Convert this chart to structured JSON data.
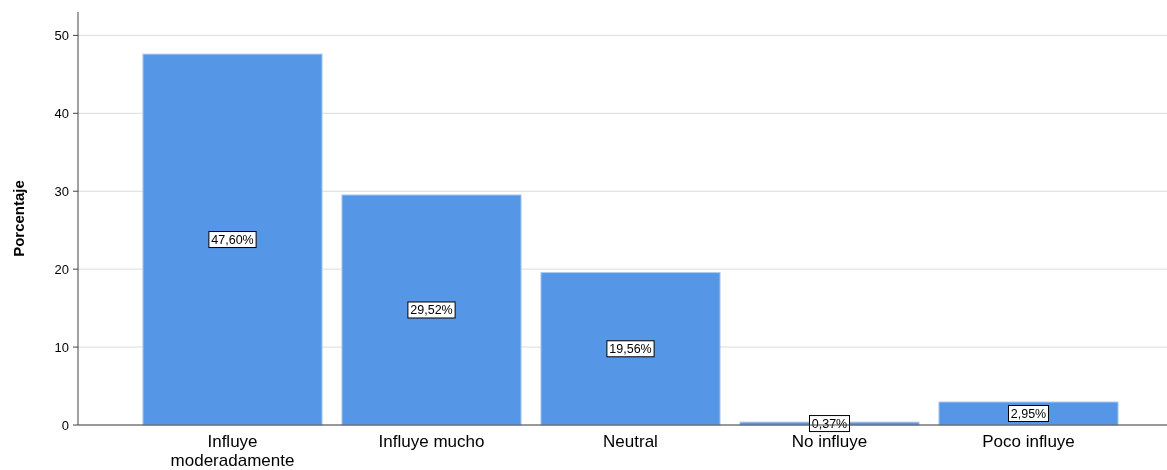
{
  "chart_data": {
    "type": "bar",
    "ylabel": "Porcentaje",
    "categories": [
      "Influye moderadamente",
      "Influye mucho",
      "Neutral",
      "No influye",
      "Poco influye"
    ],
    "values": [
      47.6,
      29.52,
      19.56,
      0.37,
      2.95
    ],
    "value_labels": [
      "47,60%",
      "29,52%",
      "19,56%",
      "0,37%",
      "2,95%"
    ],
    "color": "#5596e6",
    "ylim": [
      0,
      53
    ],
    "yticks": [
      0,
      10,
      20,
      30,
      40,
      50
    ],
    "grid": "y"
  }
}
